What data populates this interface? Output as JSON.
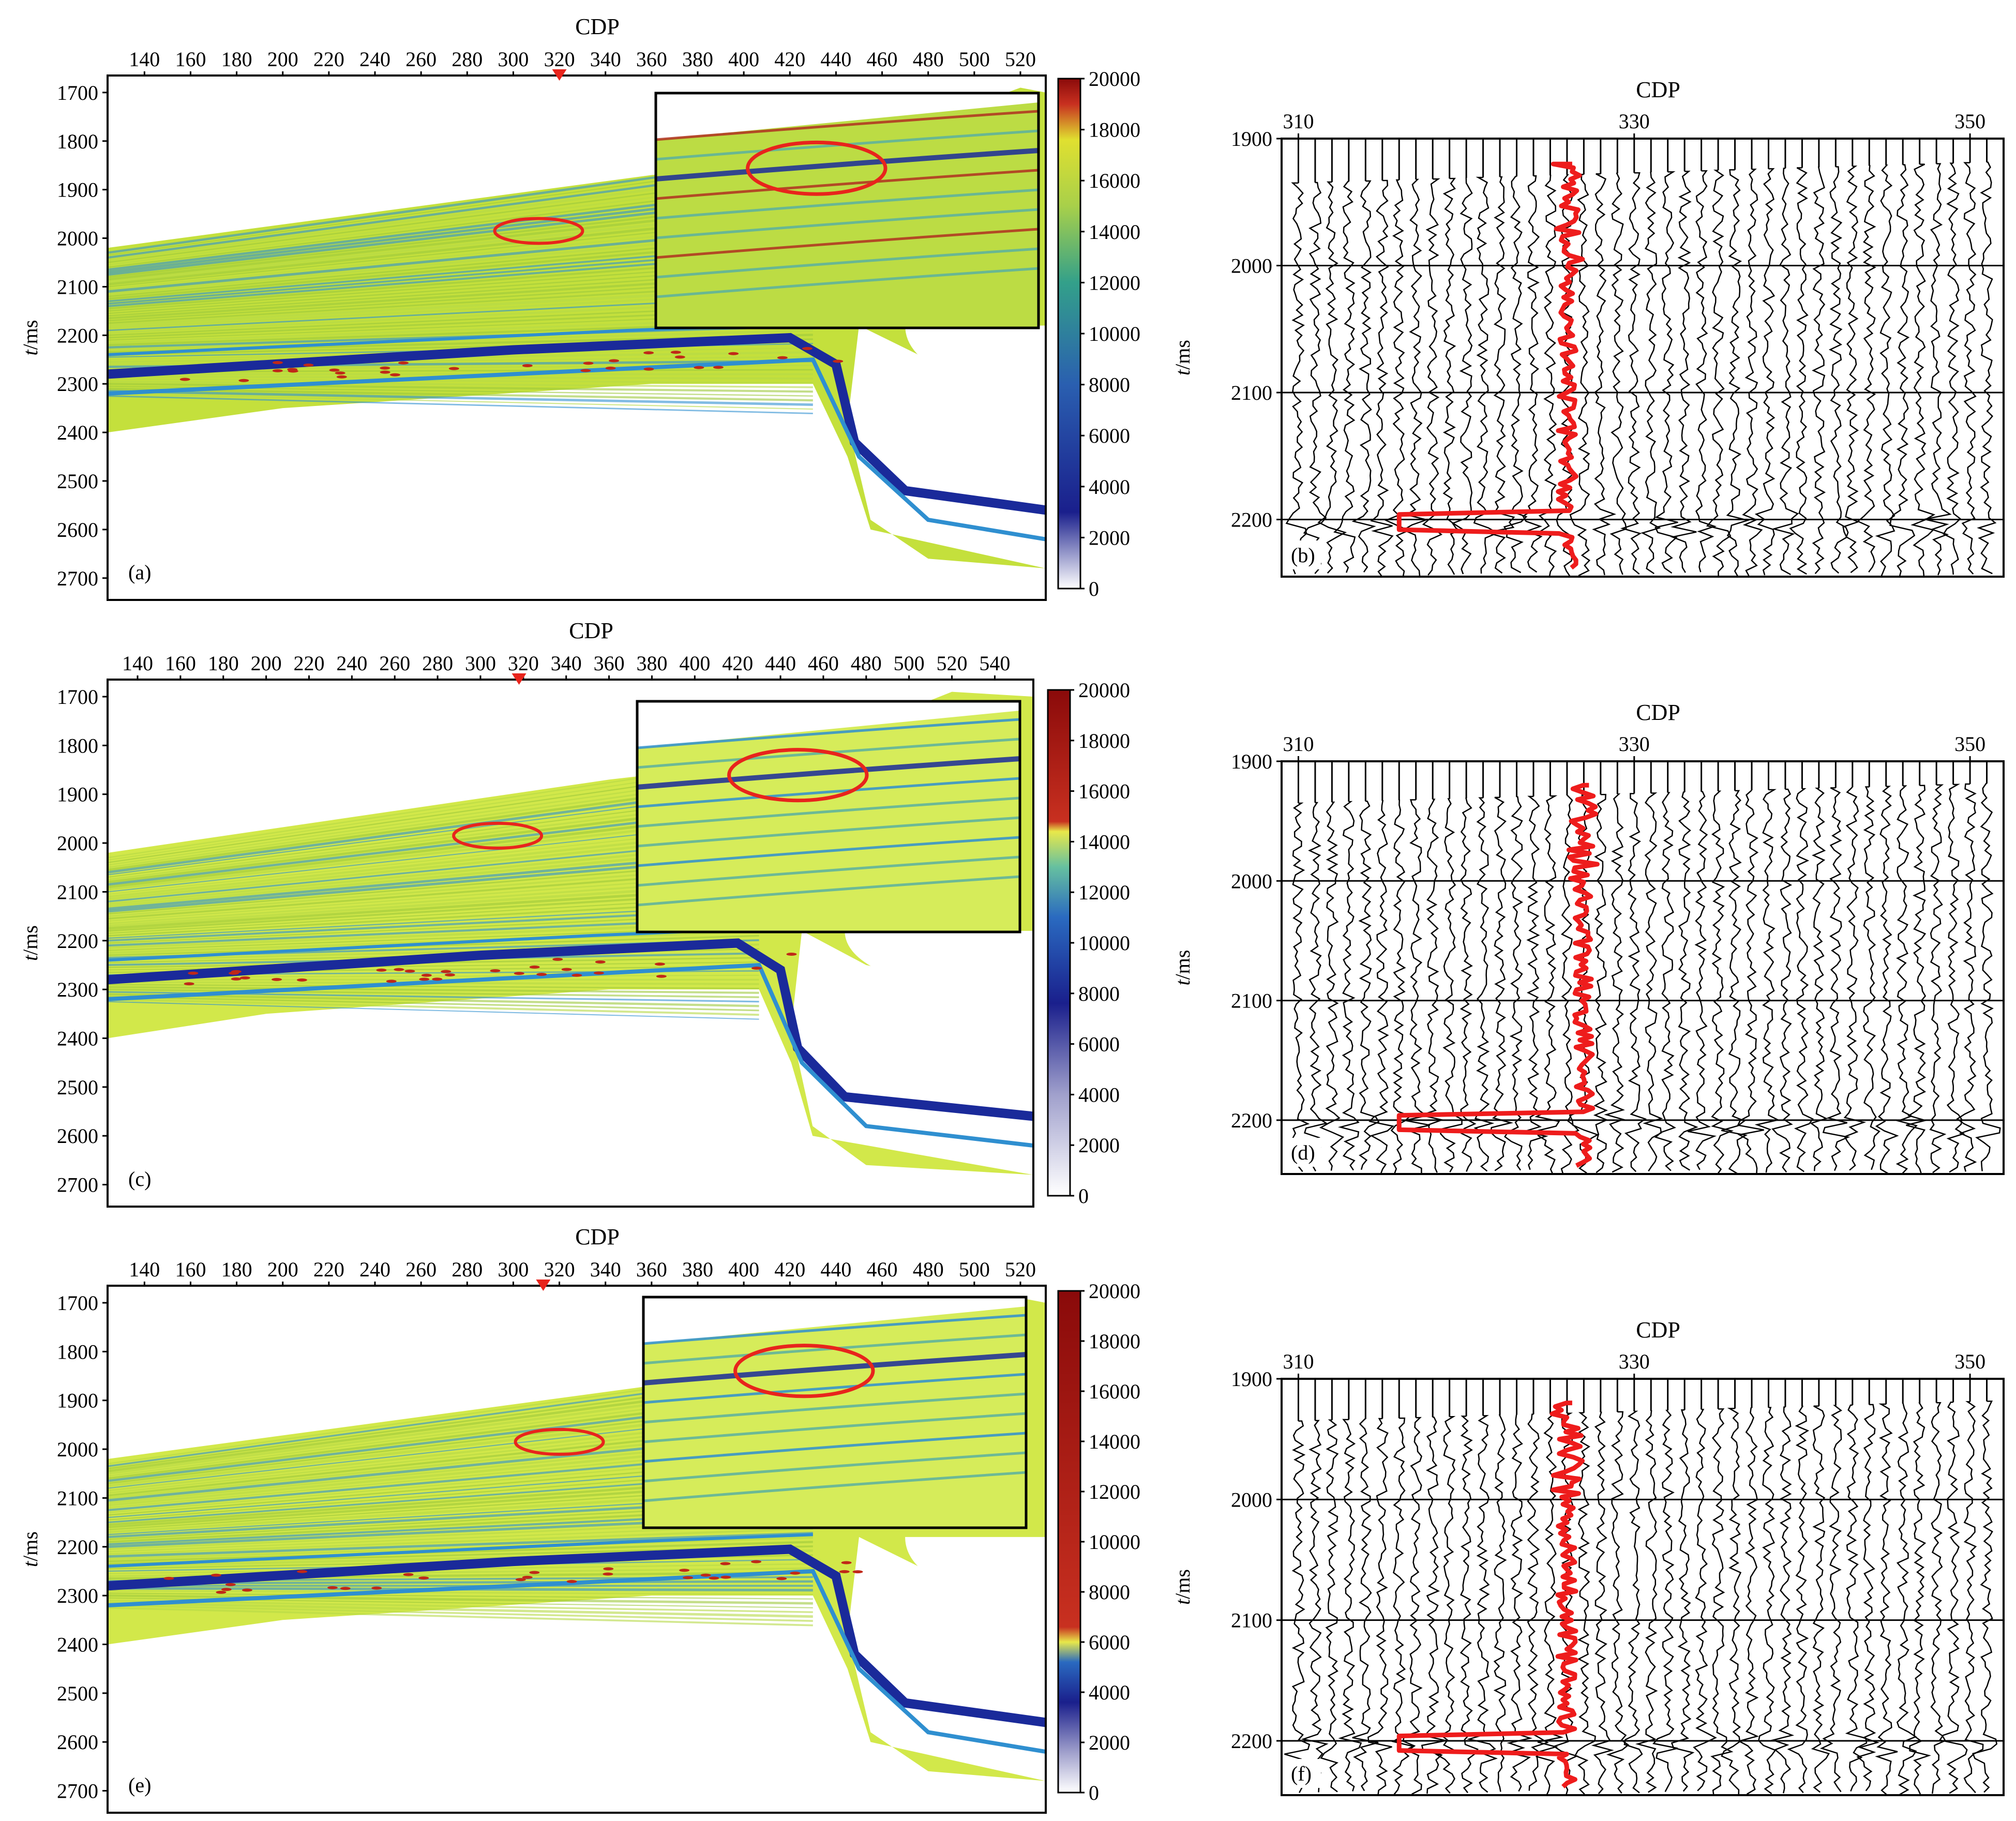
{
  "chart_data": [
    {
      "panel": "(a)",
      "type": "heatmap",
      "xlabel": "CDP",
      "ylabel": "t/ms",
      "x_ticks": [
        140,
        160,
        180,
        200,
        220,
        240,
        260,
        280,
        300,
        320,
        340,
        360,
        380,
        400,
        420,
        440,
        460,
        480,
        500,
        520
      ],
      "xlim": [
        124,
        531
      ],
      "y_ticks": [
        1700,
        1800,
        1900,
        2000,
        2100,
        2200,
        2300,
        2400,
        2500,
        2600,
        2700
      ],
      "ylim": [
        1665,
        2745
      ],
      "marker_cdp": 320,
      "colorbar": {
        "ticks": [
          0,
          2000,
          4000,
          6000,
          8000,
          10000,
          12000,
          14000,
          16000,
          18000,
          20000
        ],
        "range": [
          0,
          20000
        ],
        "stops": [
          [
            0,
            "#ffffff"
          ],
          [
            0.15,
            "#1a1f8c"
          ],
          [
            0.4,
            "#2a5fb0"
          ],
          [
            0.6,
            "#33a08a"
          ],
          [
            0.75,
            "#a8d04a"
          ],
          [
            0.88,
            "#e0e030"
          ],
          [
            0.95,
            "#c83020"
          ],
          [
            1,
            "#8a0a0a"
          ]
        ]
      }
    },
    {
      "panel": "(b)",
      "type": "line",
      "title": "CDP",
      "ylabel": "t/ms",
      "x_ticks": [
        310,
        330,
        350
      ],
      "xlim": [
        309,
        352
      ],
      "y_ticks": [
        1900,
        2000,
        2100,
        2200
      ],
      "ylim": [
        1900,
        2245
      ],
      "red_trace_cdp": 326
    },
    {
      "panel": "(c)",
      "type": "heatmap",
      "xlabel": "CDP",
      "ylabel": "t/ms",
      "x_ticks": [
        140,
        160,
        180,
        200,
        220,
        240,
        260,
        280,
        300,
        320,
        340,
        360,
        380,
        400,
        420,
        440,
        460,
        480,
        500,
        520,
        540
      ],
      "xlim": [
        126,
        558
      ],
      "y_ticks": [
        1700,
        1800,
        1900,
        2000,
        2100,
        2200,
        2300,
        2400,
        2500,
        2600,
        2700
      ],
      "ylim": [
        1665,
        2745
      ],
      "marker_cdp": 318,
      "colorbar": {
        "ticks": [
          0,
          2000,
          4000,
          6000,
          8000,
          10000,
          12000,
          14000,
          16000,
          18000,
          20000
        ],
        "range": [
          0,
          20000
        ],
        "stops": [
          [
            0,
            "#ffffff"
          ],
          [
            0.2,
            "#a0a0cc"
          ],
          [
            0.38,
            "#1a1f8c"
          ],
          [
            0.55,
            "#2a6ac0"
          ],
          [
            0.65,
            "#66c0a0"
          ],
          [
            0.72,
            "#e8e84a"
          ],
          [
            0.74,
            "#c83020"
          ],
          [
            1,
            "#8a0a0a"
          ]
        ]
      }
    },
    {
      "panel": "(d)",
      "type": "line",
      "title": "CDP",
      "ylabel": "t/ms",
      "x_ticks": [
        310,
        330,
        350
      ],
      "xlim": [
        309,
        352
      ],
      "y_ticks": [
        1900,
        2000,
        2100,
        2200
      ],
      "ylim": [
        1900,
        2245
      ],
      "red_trace_cdp": 327
    },
    {
      "panel": "(e)",
      "type": "heatmap",
      "xlabel": "CDP",
      "ylabel": "t/ms",
      "x_ticks": [
        140,
        160,
        180,
        200,
        220,
        240,
        260,
        280,
        300,
        320,
        340,
        360,
        380,
        400,
        420,
        440,
        460,
        480,
        500,
        520
      ],
      "xlim": [
        124,
        531
      ],
      "y_ticks": [
        1700,
        1800,
        1900,
        2000,
        2100,
        2200,
        2300,
        2400,
        2500,
        2600,
        2700
      ],
      "ylim": [
        1665,
        2745
      ],
      "marker_cdp": 313,
      "colorbar": {
        "ticks": [
          0,
          2000,
          4000,
          6000,
          8000,
          10000,
          12000,
          14000,
          16000,
          18000,
          20000
        ],
        "range": [
          0,
          20000
        ],
        "stops": [
          [
            0,
            "#ffffff"
          ],
          [
            0.08,
            "#a0a0cc"
          ],
          [
            0.18,
            "#1a1f8c"
          ],
          [
            0.26,
            "#2a6ac0"
          ],
          [
            0.3,
            "#e8e84a"
          ],
          [
            0.33,
            "#c83020"
          ],
          [
            1,
            "#8a0a0a"
          ]
        ]
      }
    },
    {
      "panel": "(f)",
      "type": "line",
      "title": "CDP",
      "ylabel": "t/ms",
      "x_ticks": [
        310,
        330,
        350
      ],
      "xlim": [
        309,
        352
      ],
      "y_ticks": [
        1900,
        2000,
        2100,
        2200
      ],
      "ylim": [
        1900,
        2245
      ],
      "red_trace_cdp": 326
    }
  ]
}
